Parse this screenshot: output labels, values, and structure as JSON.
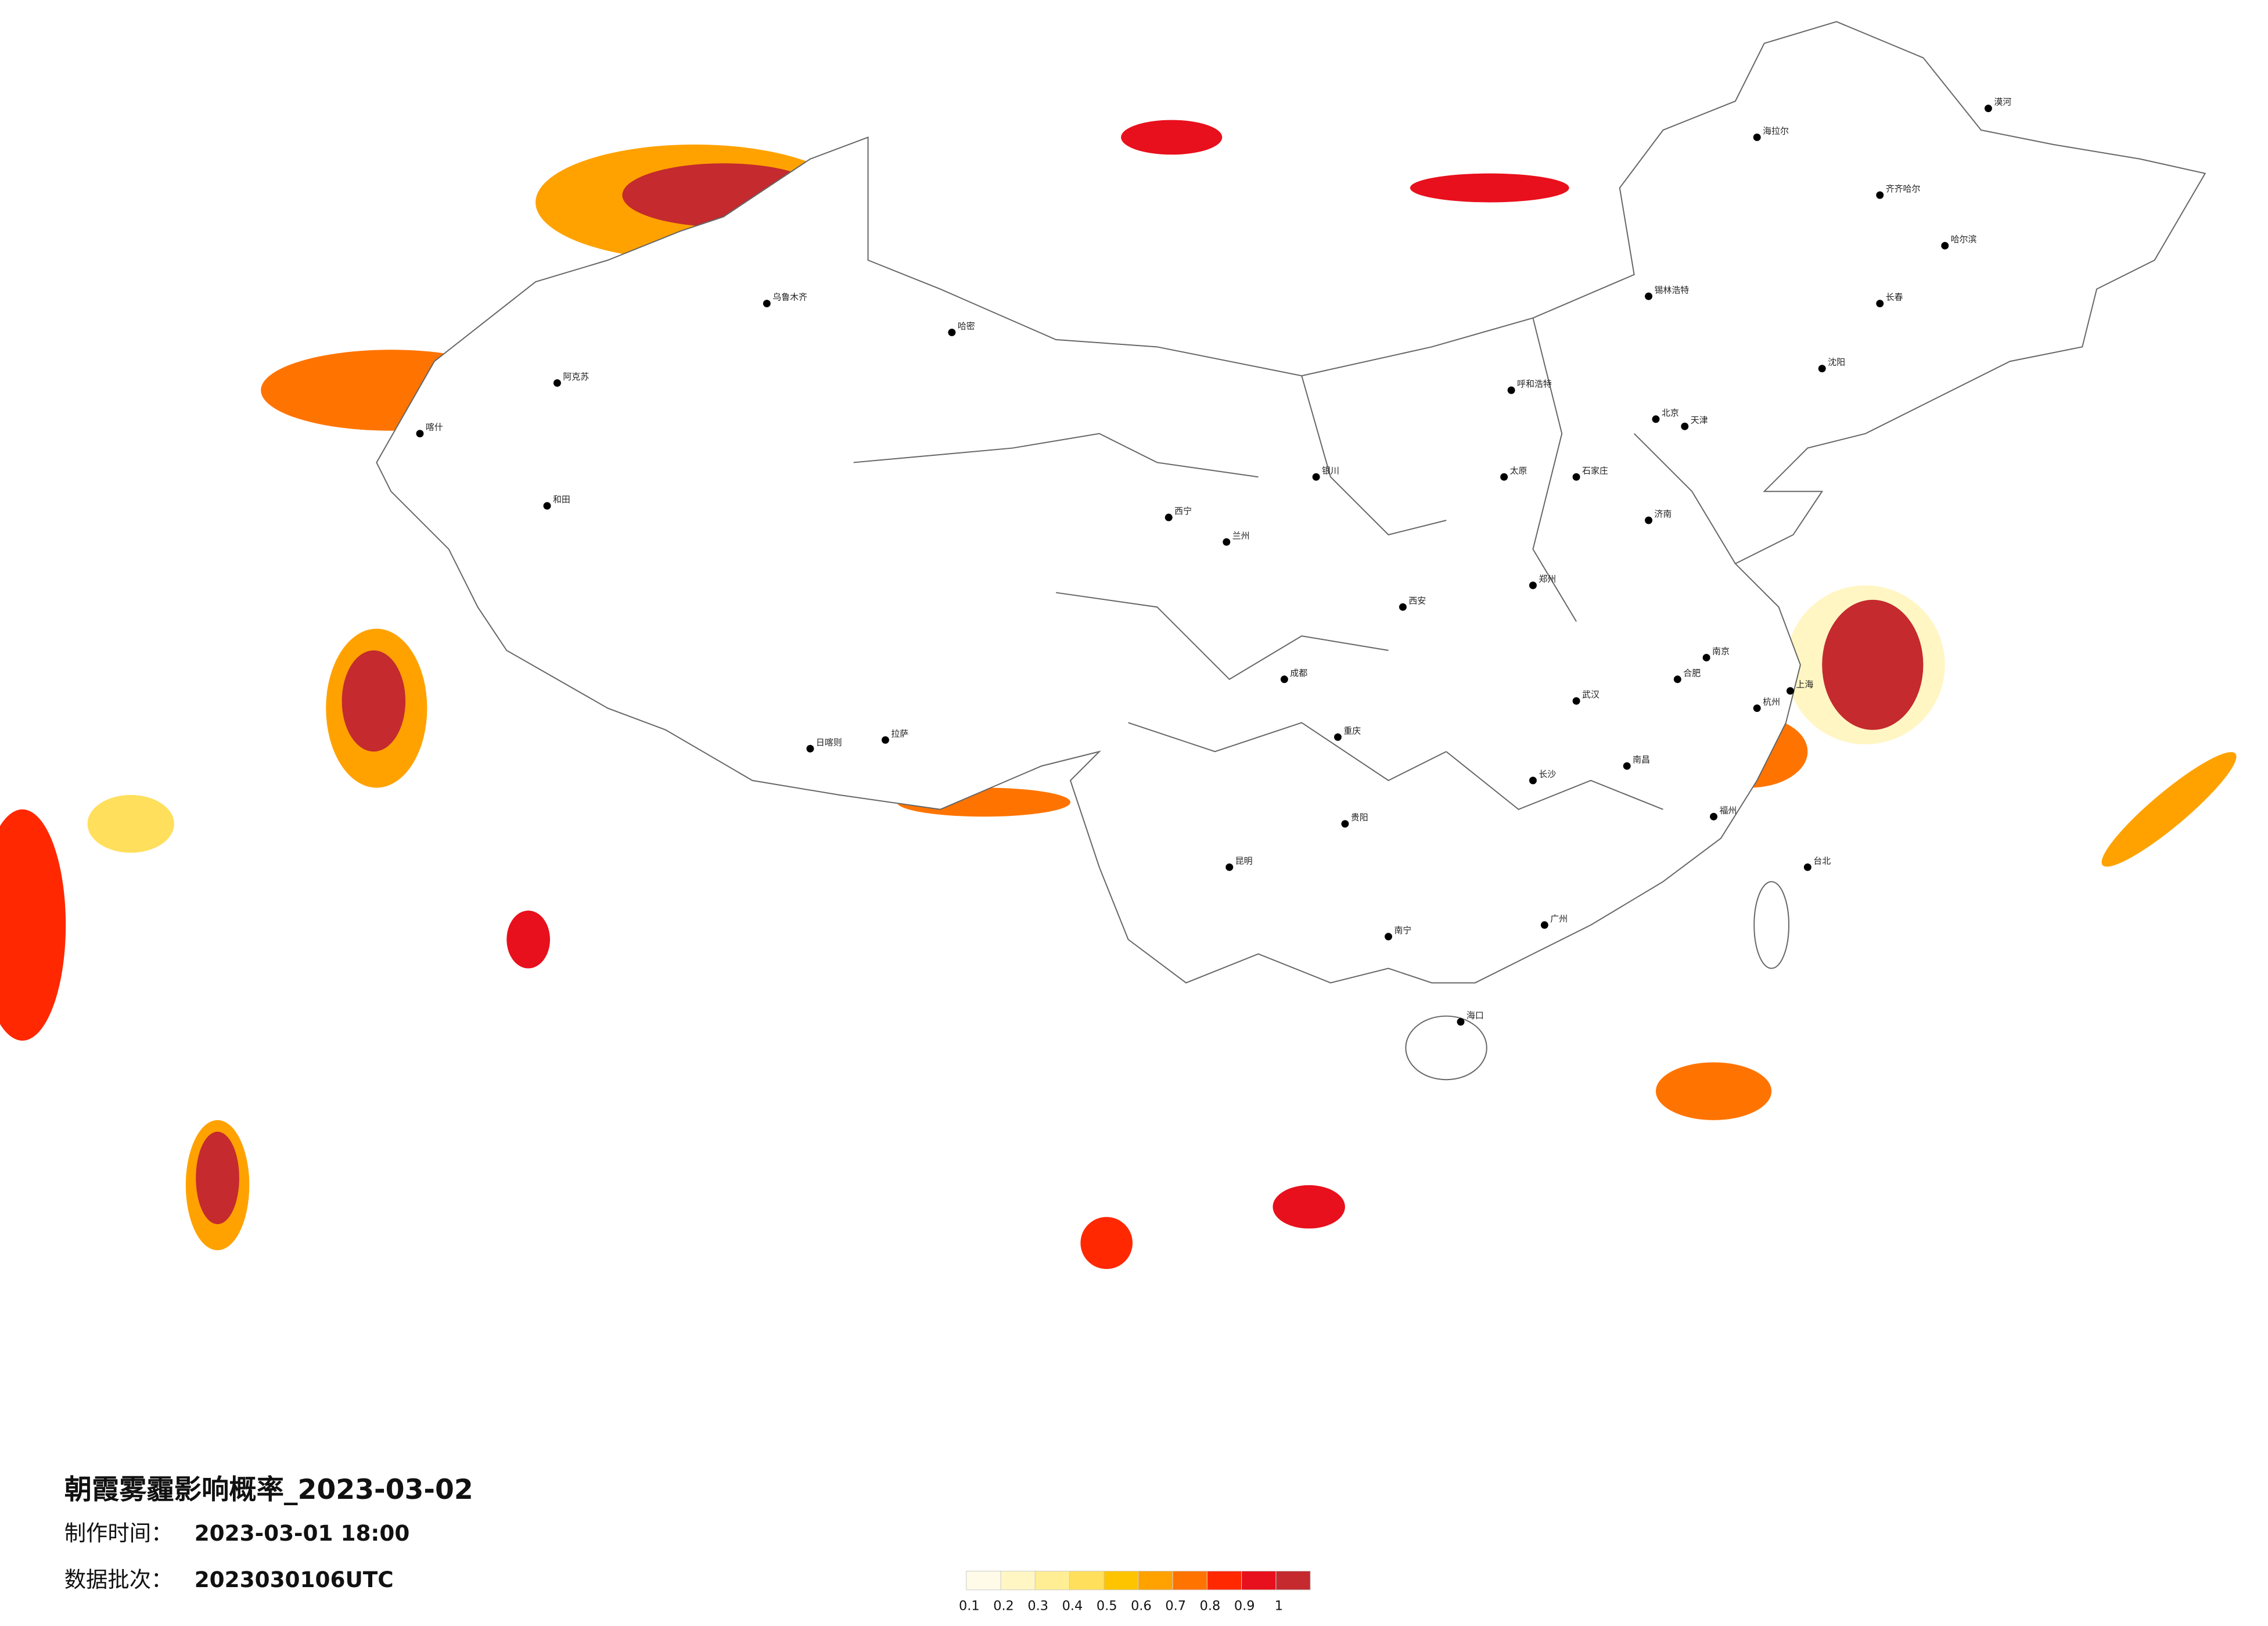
{
  "title": "朝霞雾霾影响概率_2023-03-02",
  "info": [
    {
      "label": "制作时间：",
      "value": "2023-03-01 18:00"
    },
    {
      "label": "数据批次：",
      "value": "2023030106UTC"
    }
  ],
  "legend": {
    "colors": [
      "#fffbe8",
      "#fff6c4",
      "#ffee94",
      "#ffdf5c",
      "#ffc400",
      "#ffa200",
      "#ff7400",
      "#ff2800",
      "#e8101c",
      "#c42a2e"
    ],
    "labels": [
      0.1,
      0.2,
      0.3,
      0.4,
      0.5,
      0.6,
      0.7,
      0.8,
      0.9,
      1
    ]
  },
  "cities": [
    "北京",
    "上海",
    "广州",
    "武汉",
    "成都",
    "重庆",
    "西安",
    "郑州",
    "拉萨",
    "乌鲁木齐",
    "哈尔滨",
    "沈阳",
    "长春",
    "呼和浩特",
    "兰州",
    "西宁",
    "银川",
    "昆明",
    "贵阳",
    "南宁",
    "海口",
    "福州",
    "杭州",
    "南京",
    "济南",
    "太原",
    "石家庄",
    "天津",
    "长沙",
    "南昌",
    "合肥",
    "台北",
    "喀什",
    "和田",
    "阿克苏",
    "哈密",
    "日喀则",
    "漠河",
    "海拉尔",
    "齐齐哈尔",
    "锡林浩特"
  ]
}
